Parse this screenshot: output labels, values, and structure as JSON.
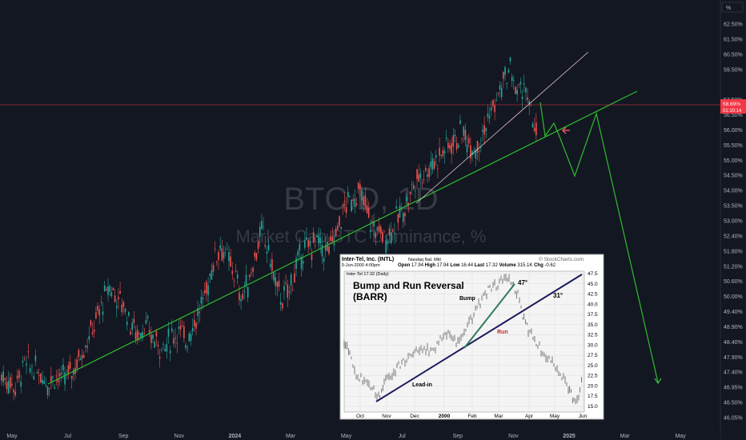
{
  "watermark": {
    "symbol": "BTC.D, 1D",
    "name": "Market Cap BTC Dominance, %"
  },
  "price_scale": {
    "unit": "%",
    "current_value": "58.69%",
    "countdown": "01:10:14"
  },
  "colors": {
    "background": "#131722",
    "candle_up": "#26a69a",
    "candle_down": "#ef5350",
    "trendline": "#2ebd2e",
    "projection": "#2ebd2e",
    "channel_line": "#e8c9c9",
    "price_line": "#f23645",
    "arrow": "#f7525f"
  },
  "chart_data": {
    "type": "candlestick",
    "y_ticks": [
      "62.50%",
      "61.50%",
      "60.50%",
      "59.50%",
      "58.69%",
      "57.50%",
      "56.50%",
      "56.00%",
      "55.50%",
      "55.00%",
      "54.50%",
      "54.00%",
      "53.50%",
      "53.00%",
      "52.40%",
      "51.80%",
      "51.20%",
      "50.60%",
      "50.00%",
      "49.40%",
      "48.90%",
      "48.40%",
      "47.90%",
      "47.40%",
      "46.95%",
      "46.50%",
      "46.05%"
    ],
    "x_ticks": [
      "May",
      "Jul",
      "Sep",
      "Nov",
      "2024",
      "Mar",
      "May",
      "Jul",
      "Sep",
      "Nov",
      "2025",
      "Mar",
      "May"
    ],
    "ylim": [
      46.05,
      62.5
    ],
    "series": [
      {
        "values": [
          [
            0,
            47.9
          ],
          [
            6,
            47.4
          ],
          [
            10,
            48.4
          ],
          [
            14,
            48.2
          ],
          [
            17,
            48.0
          ],
          [
            20,
            47.6
          ],
          [
            23,
            47.9
          ],
          [
            26,
            47.7
          ],
          [
            29,
            47.9
          ],
          [
            32,
            48.3
          ],
          [
            35,
            49.0
          ],
          [
            38,
            49.6
          ],
          [
            41,
            50.3
          ],
          [
            44,
            51.1
          ],
          [
            47,
            51.8
          ],
          [
            50,
            51.3
          ],
          [
            53,
            51.0
          ],
          [
            56,
            50.2
          ],
          [
            59,
            49.7
          ],
          [
            62,
            50.1
          ],
          [
            65,
            49.6
          ],
          [
            68,
            49.3
          ],
          [
            71,
            49.1
          ],
          [
            74,
            49.6
          ],
          [
            77,
            49.9
          ],
          [
            80,
            49.4
          ],
          [
            83,
            50.1
          ],
          [
            86,
            50.7
          ],
          [
            89,
            51.6
          ],
          [
            92,
            52.9
          ],
          [
            95,
            53.6
          ],
          [
            98,
            53.0
          ],
          [
            101,
            52.4
          ],
          [
            104,
            51.3
          ],
          [
            107,
            51.9
          ],
          [
            110,
            53.1
          ],
          [
            113,
            54.2
          ],
          [
            116,
            53.3
          ],
          [
            119,
            51.9
          ],
          [
            122,
            51.2
          ],
          [
            125,
            51.7
          ],
          [
            128,
            52.6
          ],
          [
            131,
            53.4
          ],
          [
            134,
            53.5
          ],
          [
            137,
            53.8
          ],
          [
            140,
            53.3
          ],
          [
            143,
            53.5
          ],
          [
            146,
            54.3
          ],
          [
            149,
            55.3
          ],
          [
            152,
            55.6
          ],
          [
            155,
            55.9
          ],
          [
            158,
            55.3
          ],
          [
            161,
            54.4
          ],
          [
            164,
            54.2
          ],
          [
            167,
            53.9
          ],
          [
            170,
            54.4
          ],
          [
            173,
            54.9
          ],
          [
            176,
            55.4
          ],
          [
            179,
            56.2
          ],
          [
            182,
            56.7
          ],
          [
            185,
            56.9
          ],
          [
            188,
            57.3
          ],
          [
            191,
            57.6
          ],
          [
            194,
            58.0
          ],
          [
            197,
            58.2
          ],
          [
            200,
            58.5
          ],
          [
            203,
            58.1
          ],
          [
            206,
            57.9
          ],
          [
            209,
            58.4
          ],
          [
            212,
            59.3
          ],
          [
            215,
            59.9
          ],
          [
            218,
            60.7
          ],
          [
            221,
            61.3
          ],
          [
            224,
            60.2
          ],
          [
            227,
            60.6
          ],
          [
            230,
            59.2
          ],
          [
            233,
            58.5
          ]
        ]
      }
    ],
    "projection_path": [
      "58.69%",
      "57.50%",
      "58.0%",
      "55.50%",
      "58.5%",
      "47.40%"
    ],
    "annotations": []
  },
  "inset": {
    "title": "Inter-Tel, Inc. (INTL)",
    "exchange": "Nasdaq Nat. Mkt",
    "source": "© StockCharts.com",
    "date_line": "5-Jun-2000 4:00pm",
    "open_label": "Open",
    "open": "17.94",
    "high_label": "High",
    "high": "17.94",
    "low_label": "Low",
    "low": "16.44",
    "last_label": "Last",
    "last": "17.32",
    "volume_label": "Volume",
    "volume": "315.1K",
    "chg_label": "Chg",
    "chg": "-0.62",
    "legend": "Inter-Tel 17.32 (Daily)",
    "heading_line1": "Bump and Run Reversal",
    "heading_line2": "(BARR)",
    "bump_label": "Bump",
    "run_label": "Run",
    "leadin_label": "Lead-in",
    "angle_steep": "47°",
    "angle_shallow": "31°",
    "y_ticks": [
      "47.5",
      "45.0",
      "42.5",
      "40.0",
      "37.5",
      "35.0",
      "32.5",
      "30.0",
      "27.5",
      "25.0",
      "22.5",
      "20.0",
      "17.5",
      "15.0"
    ],
    "x_ticks": [
      "Oct",
      "Nov",
      "Dec",
      "2000",
      "Feb",
      "Mar",
      "Apr",
      "May",
      "Jun"
    ]
  }
}
